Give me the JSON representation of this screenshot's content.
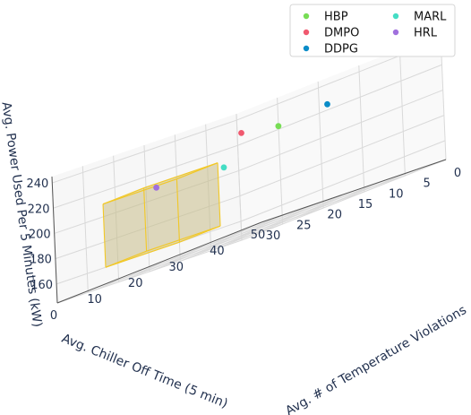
{
  "chart_data": {
    "type": "scatter",
    "projection": "3d",
    "title": "",
    "xlabel": "Avg. Chiller Off Time (5 min)",
    "ylabel": "Avg. # of Temperature Violations",
    "zlabel": "Avg. Power Used Per 5 Minutes (kW)",
    "xlim": [
      0,
      30
    ],
    "ylim": [
      0,
      50
    ],
    "zlim": [
      145,
      245
    ],
    "xticks": [
      0,
      5,
      10,
      15,
      20,
      25,
      30
    ],
    "yticks": [
      0,
      10,
      20,
      30,
      40,
      50
    ],
    "zticks": [
      160,
      180,
      200,
      220,
      240
    ],
    "grid": true,
    "legend_position": "top-right",
    "legend_columns": 2,
    "series": [
      {
        "name": "HBP",
        "color": "#77dd55",
        "x": 2,
        "y": 13,
        "z": 222
      },
      {
        "name": "DMPO",
        "color": "#f0596f",
        "x": 2,
        "y": 4,
        "z": 228
      },
      {
        "name": "DDPG",
        "color": "#0a8cc8",
        "x": 2,
        "y": 25,
        "z": 224
      },
      {
        "name": "MARL",
        "color": "#44ddc4",
        "x": 27,
        "y": 37,
        "z": 200
      },
      {
        "name": "HRL",
        "color": "#a070dd",
        "x": 16,
        "y": 4,
        "z": 208
      }
    ],
    "highlight_box": {
      "x": [
        10,
        22
      ],
      "y": [
        0,
        10
      ],
      "z": [
        160,
        210
      ],
      "fill": "#c8be8a",
      "edge": "#f2c826"
    }
  }
}
